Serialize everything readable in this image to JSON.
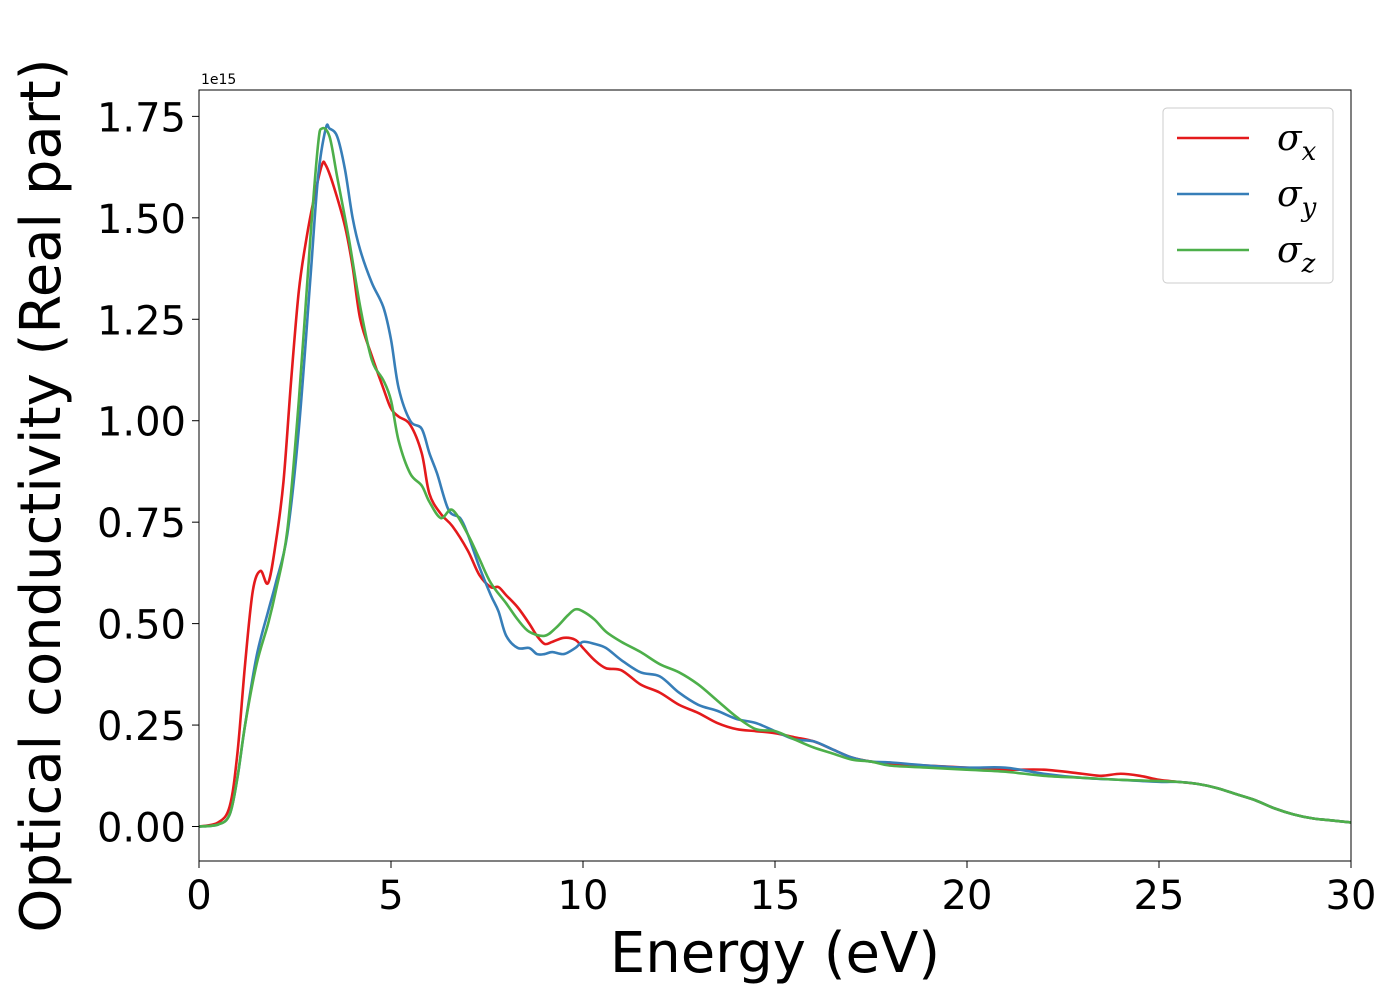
{
  "chart_data": {
    "type": "line",
    "title": "",
    "xlabel": "Energy (eV)",
    "ylabel": "Optical conductivity (Real part)",
    "y_offset_label": "1e15",
    "y_scale": 1000000000000000.0,
    "xlim": [
      0,
      30
    ],
    "ylim": [
      -0.085,
      1.815
    ],
    "xticks": [
      0,
      5,
      10,
      15,
      20,
      25,
      30
    ],
    "xtick_labels": [
      "0",
      "5",
      "10",
      "15",
      "20",
      "25",
      "30"
    ],
    "yticks": [
      0,
      0.25,
      0.5,
      0.75,
      1.0,
      1.25,
      1.5,
      1.75
    ],
    "ytick_labels": [
      "0.00",
      "0.25",
      "0.50",
      "0.75",
      "1.00",
      "1.25",
      "1.50",
      "1.75"
    ],
    "grid": false,
    "legend_position": "top-right",
    "series": [
      {
        "name": "σx",
        "legend_base": "σ",
        "legend_sub": "x",
        "color": "#e41a1c",
        "x": [
          0,
          0.5,
          0.8,
          1.0,
          1.2,
          1.4,
          1.6,
          1.8,
          2.0,
          2.2,
          2.4,
          2.6,
          2.8,
          3.0,
          3.2,
          3.3,
          3.5,
          3.8,
          4.0,
          4.2,
          4.5,
          4.8,
          5.0,
          5.2,
          5.5,
          5.8,
          6.0,
          6.3,
          6.6,
          7.0,
          7.3,
          7.6,
          7.8,
          8.0,
          8.3,
          8.6,
          8.8,
          9.0,
          9.2,
          9.5,
          9.8,
          10.0,
          10.3,
          10.6,
          11.0,
          11.5,
          12.0,
          12.5,
          13.0,
          13.5,
          14.0,
          14.5,
          15.0,
          15.5,
          16.0,
          16.5,
          17.0,
          17.5,
          18.0,
          19.0,
          20.0,
          21.0,
          22.0,
          23.0,
          23.5,
          24.0,
          24.5,
          25.0,
          25.5,
          26.0,
          26.5,
          27.0,
          27.5,
          28.0,
          28.5,
          29.0,
          29.5,
          30.0
        ],
        "values": [
          0.0,
          0.01,
          0.05,
          0.18,
          0.4,
          0.58,
          0.63,
          0.6,
          0.7,
          0.85,
          1.1,
          1.32,
          1.45,
          1.55,
          1.63,
          1.63,
          1.58,
          1.48,
          1.38,
          1.25,
          1.16,
          1.08,
          1.03,
          1.01,
          0.99,
          0.92,
          0.82,
          0.77,
          0.74,
          0.68,
          0.62,
          0.59,
          0.59,
          0.57,
          0.54,
          0.5,
          0.47,
          0.45,
          0.455,
          0.465,
          0.46,
          0.44,
          0.41,
          0.39,
          0.385,
          0.35,
          0.33,
          0.3,
          0.28,
          0.255,
          0.24,
          0.235,
          0.23,
          0.22,
          0.21,
          0.19,
          0.17,
          0.16,
          0.155,
          0.15,
          0.145,
          0.14,
          0.14,
          0.13,
          0.125,
          0.13,
          0.125,
          0.115,
          0.11,
          0.105,
          0.095,
          0.08,
          0.065,
          0.045,
          0.03,
          0.02,
          0.015,
          0.01
        ]
      },
      {
        "name": "σy",
        "legend_base": "σ",
        "legend_sub": "y",
        "color": "#377eb8",
        "x": [
          0,
          0.5,
          0.8,
          1.0,
          1.2,
          1.5,
          1.8,
          2.0,
          2.3,
          2.6,
          2.9,
          3.1,
          3.3,
          3.4,
          3.6,
          3.8,
          4.0,
          4.2,
          4.5,
          4.8,
          5.0,
          5.2,
          5.5,
          5.8,
          6.0,
          6.2,
          6.5,
          6.8,
          7.0,
          7.3,
          7.6,
          7.8,
          8.0,
          8.3,
          8.6,
          8.8,
          9.0,
          9.2,
          9.5,
          9.8,
          10.0,
          10.3,
          10.6,
          11.0,
          11.5,
          12.0,
          12.5,
          13.0,
          13.5,
          14.0,
          14.5,
          15.0,
          15.5,
          16.0,
          16.5,
          17.0,
          17.5,
          18.0,
          19.0,
          20.0,
          21.0,
          22.0,
          23.0,
          24.0,
          25.0,
          25.5,
          26.0,
          26.5,
          27.0,
          27.5,
          28.0,
          28.5,
          29.0,
          29.5,
          30.0
        ],
        "values": [
          0.0,
          0.005,
          0.03,
          0.12,
          0.25,
          0.42,
          0.53,
          0.6,
          0.72,
          0.98,
          1.35,
          1.6,
          1.72,
          1.72,
          1.7,
          1.62,
          1.5,
          1.42,
          1.34,
          1.28,
          1.2,
          1.08,
          1.0,
          0.98,
          0.92,
          0.87,
          0.78,
          0.76,
          0.72,
          0.64,
          0.57,
          0.53,
          0.47,
          0.44,
          0.44,
          0.425,
          0.425,
          0.43,
          0.425,
          0.44,
          0.455,
          0.45,
          0.44,
          0.41,
          0.38,
          0.37,
          0.33,
          0.3,
          0.285,
          0.265,
          0.255,
          0.235,
          0.215,
          0.21,
          0.19,
          0.17,
          0.16,
          0.158,
          0.15,
          0.145,
          0.145,
          0.13,
          0.12,
          0.115,
          0.11,
          0.11,
          0.105,
          0.095,
          0.08,
          0.065,
          0.045,
          0.03,
          0.02,
          0.015,
          0.01
        ]
      },
      {
        "name": "σz",
        "legend_base": "σ",
        "legend_sub": "z",
        "color": "#4daf4a",
        "x": [
          0,
          0.5,
          0.8,
          1.0,
          1.2,
          1.5,
          1.8,
          2.0,
          2.3,
          2.6,
          2.9,
          3.1,
          3.2,
          3.4,
          3.6,
          3.9,
          4.2,
          4.5,
          4.8,
          5.0,
          5.2,
          5.5,
          5.8,
          6.0,
          6.3,
          6.6,
          7.0,
          7.3,
          7.6,
          8.0,
          8.3,
          8.6,
          9.0,
          9.3,
          9.6,
          9.8,
          10.0,
          10.3,
          10.6,
          11.0,
          11.5,
          12.0,
          12.5,
          13.0,
          13.5,
          14.0,
          14.5,
          15.0,
          15.5,
          16.0,
          16.5,
          17.0,
          17.5,
          18.0,
          19.0,
          20.0,
          21.0,
          22.0,
          23.0,
          24.0,
          25.0,
          25.5,
          26.0,
          26.5,
          27.0,
          27.5,
          28.0,
          28.5,
          29.0,
          29.5,
          30.0
        ],
        "values": [
          0.0,
          0.005,
          0.03,
          0.12,
          0.25,
          0.4,
          0.5,
          0.58,
          0.73,
          1.05,
          1.45,
          1.68,
          1.72,
          1.7,
          1.6,
          1.45,
          1.28,
          1.15,
          1.1,
          1.05,
          0.95,
          0.87,
          0.84,
          0.8,
          0.76,
          0.78,
          0.72,
          0.66,
          0.6,
          0.55,
          0.51,
          0.48,
          0.47,
          0.49,
          0.52,
          0.535,
          0.53,
          0.51,
          0.48,
          0.455,
          0.43,
          0.4,
          0.38,
          0.35,
          0.31,
          0.27,
          0.24,
          0.235,
          0.215,
          0.195,
          0.18,
          0.165,
          0.16,
          0.15,
          0.145,
          0.14,
          0.135,
          0.125,
          0.12,
          0.115,
          0.112,
          0.11,
          0.105,
          0.095,
          0.08,
          0.065,
          0.045,
          0.03,
          0.02,
          0.015,
          0.01
        ]
      }
    ]
  }
}
